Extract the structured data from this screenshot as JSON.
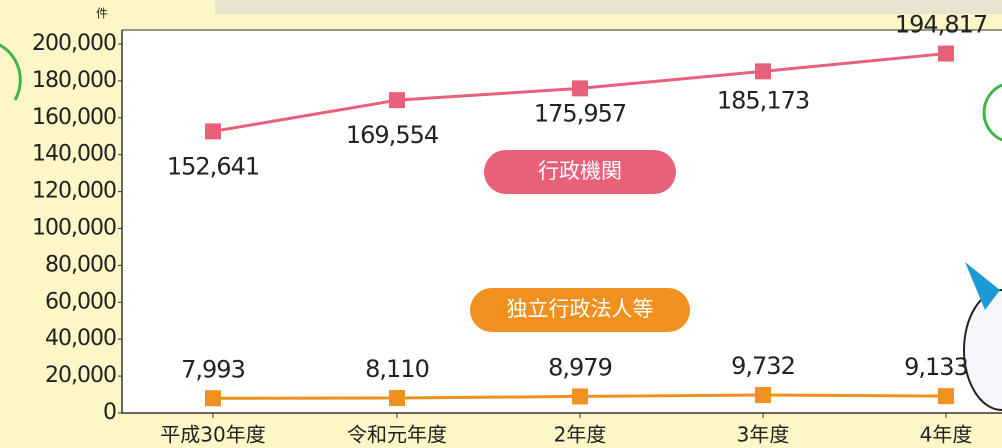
{
  "chart_data": {
    "type": "line",
    "unit_label": "件",
    "categories": [
      "平成30年度",
      "令和元年度",
      "2年度",
      "3年度",
      "4年度"
    ],
    "series": [
      {
        "name": "行政機関",
        "color": "#e8607a",
        "values": [
          152641,
          169554,
          175957,
          185173,
          194817
        ],
        "value_labels": [
          "152,641",
          "169,554",
          "175,957",
          "185,173",
          "194,817"
        ]
      },
      {
        "name": "独立行政法人等",
        "color": "#f0901e",
        "values": [
          7993,
          8110,
          8979,
          9732,
          9133
        ],
        "value_labels": [
          "7,993",
          "8,110",
          "8,979",
          "9,732",
          "9,133"
        ]
      }
    ],
    "ylim": [
      0,
      200000
    ],
    "yticks": [
      0,
      {
        "value": 20000,
        "label": "20,000"
      },
      {
        "value": 40000,
        "label": "40,000"
      },
      {
        "value": 60000,
        "label": "60,000"
      },
      {
        "value": 80000,
        "label": "80,000"
      },
      {
        "value": 100000,
        "label": "100,000"
      },
      {
        "value": 120000,
        "label": "120,000"
      },
      {
        "value": 140000,
        "label": "140,000"
      },
      {
        "value": 160000,
        "label": "160,000"
      },
      {
        "value": 180000,
        "label": "180,000"
      },
      {
        "value": 200000,
        "label": "200,000"
      }
    ]
  }
}
